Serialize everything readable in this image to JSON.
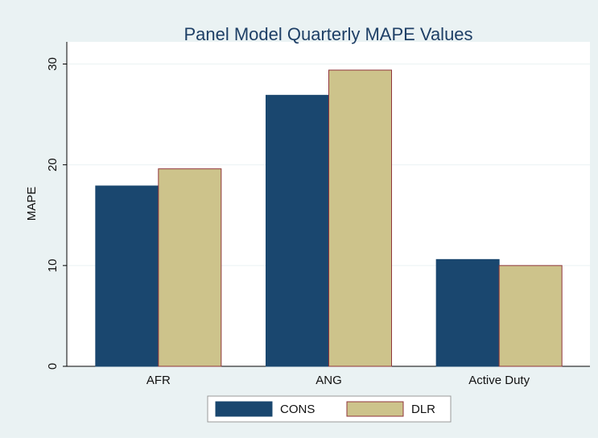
{
  "chart_data": {
    "type": "bar",
    "title": "Panel Model Quarterly MAPE Values",
    "y_label": "MAPE",
    "categories": [
      "AFR",
      "ANG",
      "Active Duty"
    ],
    "series": [
      {
        "name": "CONS",
        "color": "#1a476f",
        "values": [
          17.9,
          26.9,
          10.6
        ]
      },
      {
        "name": "DLR",
        "color": "#cdc38b",
        "edge_color": "#90353b",
        "values": [
          19.6,
          29.4,
          10.0
        ]
      }
    ],
    "ylim": [
      0,
      32.2
    ],
    "yticks": [
      0,
      10,
      20,
      30
    ],
    "grid": true,
    "legend": "bottom"
  }
}
